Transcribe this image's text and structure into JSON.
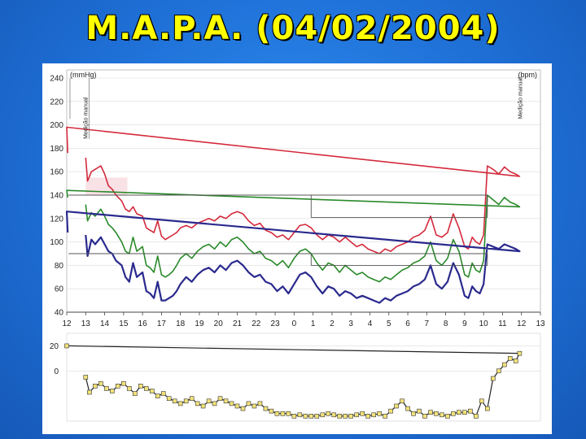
{
  "title": "M.A.P.A. (04/02/2004)",
  "chart_data": [
    {
      "type": "line",
      "title": "",
      "ylabel_left": "(mmHg)",
      "ylabel_right": "(bpm)",
      "ylim": [
        40,
        240
      ],
      "yticks": [
        40,
        60,
        80,
        100,
        120,
        140,
        160,
        180,
        200,
        220,
        240
      ],
      "xtick_labels": [
        "12",
        "13",
        "14",
        "15",
        "16",
        "17",
        "18",
        "19",
        "20",
        "21",
        "22",
        "23",
        "0",
        "1",
        "2",
        "3",
        "4",
        "5",
        "6",
        "7",
        "8",
        "9",
        "10",
        "11",
        "12",
        "13"
      ],
      "annotations": [
        "Medição manual",
        "Medição manual"
      ],
      "series": [
        {
          "color": "#d42a3c",
          "x": [
            13,
            13.1,
            13.3,
            13.5,
            13.8,
            14,
            14.2,
            14.4,
            14.6,
            14.9,
            15.1,
            15.3,
            15.5,
            15.7,
            16,
            16.2,
            16.4,
            16.6,
            16.8,
            17,
            17.2,
            17.4,
            17.6,
            17.8,
            18,
            18.3,
            18.6,
            18.9,
            19.2,
            19.5,
            19.8,
            20.1,
            20.4,
            20.7,
            21,
            21.3,
            21.6,
            21.9,
            22.2,
            22.5,
            22.8,
            23.1,
            23.4,
            23.7,
            0,
            0.3,
            0.6,
            0.9,
            1.2,
            1.5,
            1.8,
            2.1,
            2.4,
            2.7,
            3,
            3.3,
            3.6,
            3.9,
            4.2,
            4.5,
            4.8,
            5.1,
            5.4,
            5.7,
            6,
            6.3,
            6.6,
            6.9,
            7.2,
            7.5,
            7.8,
            8.1,
            8.4,
            8.7,
            9,
            9.2,
            9.4,
            9.6,
            9.8,
            10,
            10.2,
            10.5,
            10.8,
            11.1,
            11.4,
            11.7,
            11.9,
            12,
            12.05
          ],
          "values": [
            172,
            152,
            160,
            162,
            165,
            158,
            148,
            145,
            140,
            135,
            128,
            126,
            130,
            124,
            122,
            112,
            110,
            108,
            118,
            105,
            102,
            104,
            106,
            108,
            112,
            114,
            112,
            116,
            118,
            120,
            118,
            122,
            120,
            124,
            126,
            124,
            118,
            114,
            116,
            110,
            108,
            104,
            106,
            102,
            108,
            114,
            115,
            112,
            106,
            102,
            106,
            104,
            100,
            104,
            100,
            96,
            98,
            94,
            92,
            90,
            94,
            92,
            96,
            98,
            100,
            104,
            106,
            110,
            122,
            106,
            104,
            108,
            124,
            112,
            96,
            94,
            104,
            100,
            98,
            106,
            165,
            162,
            158,
            164,
            160,
            158,
            156,
            198,
            176
          ]
        },
        {
          "color": "#2a8a2a",
          "x": [
            13,
            13.1,
            13.3,
            13.5,
            13.8,
            14,
            14.2,
            14.4,
            14.6,
            14.9,
            15.1,
            15.3,
            15.5,
            15.7,
            16,
            16.2,
            16.4,
            16.6,
            16.8,
            17,
            17.2,
            17.4,
            17.6,
            17.8,
            18,
            18.3,
            18.6,
            18.9,
            19.2,
            19.5,
            19.8,
            20.1,
            20.4,
            20.7,
            21,
            21.3,
            21.6,
            21.9,
            22.2,
            22.5,
            22.8,
            23.1,
            23.4,
            23.7,
            0,
            0.3,
            0.6,
            0.9,
            1.2,
            1.5,
            1.8,
            2.1,
            2.4,
            2.7,
            3,
            3.3,
            3.6,
            3.9,
            4.2,
            4.5,
            4.8,
            5.1,
            5.4,
            5.7,
            6,
            6.3,
            6.6,
            6.9,
            7.2,
            7.5,
            7.8,
            8.1,
            8.4,
            8.7,
            9,
            9.2,
            9.4,
            9.6,
            9.8,
            10,
            10.2,
            10.5,
            10.8,
            11.1,
            11.4,
            11.7,
            11.9,
            12,
            12.05
          ],
          "values": [
            132,
            118,
            125,
            122,
            128,
            122,
            115,
            112,
            108,
            100,
            92,
            90,
            104,
            92,
            96,
            80,
            78,
            74,
            88,
            72,
            70,
            72,
            75,
            80,
            86,
            90,
            86,
            92,
            96,
            98,
            94,
            100,
            96,
            102,
            104,
            100,
            94,
            90,
            92,
            86,
            84,
            80,
            84,
            78,
            86,
            92,
            94,
            90,
            82,
            76,
            82,
            80,
            74,
            80,
            76,
            72,
            74,
            70,
            68,
            66,
            70,
            68,
            72,
            76,
            78,
            82,
            84,
            88,
            100,
            84,
            80,
            86,
            102,
            92,
            72,
            70,
            82,
            76,
            74,
            84,
            140,
            136,
            132,
            138,
            134,
            132,
            130,
            144,
            138
          ]
        },
        {
          "color": "#2a2a8e",
          "x": [
            13,
            13.1,
            13.3,
            13.5,
            13.8,
            14,
            14.2,
            14.4,
            14.6,
            14.9,
            15.1,
            15.3,
            15.5,
            15.7,
            16,
            16.2,
            16.4,
            16.6,
            16.8,
            17,
            17.2,
            17.4,
            17.6,
            17.8,
            18,
            18.3,
            18.6,
            18.9,
            19.2,
            19.5,
            19.8,
            20.1,
            20.4,
            20.7,
            21,
            21.3,
            21.6,
            21.9,
            22.2,
            22.5,
            22.8,
            23.1,
            23.4,
            23.7,
            0,
            0.3,
            0.6,
            0.9,
            1.2,
            1.5,
            1.8,
            2.1,
            2.4,
            2.7,
            3,
            3.3,
            3.6,
            3.9,
            4.2,
            4.5,
            4.8,
            5.1,
            5.4,
            5.7,
            6,
            6.3,
            6.6,
            6.9,
            7.2,
            7.5,
            7.8,
            8.1,
            8.4,
            8.7,
            9,
            9.2,
            9.4,
            9.6,
            9.8,
            10,
            10.2,
            10.5,
            10.8,
            11.1,
            11.4,
            11.7,
            11.9,
            12,
            12.05
          ],
          "values": [
            106,
            88,
            102,
            98,
            104,
            98,
            92,
            90,
            84,
            80,
            70,
            66,
            82,
            70,
            74,
            58,
            56,
            52,
            66,
            50,
            50,
            52,
            54,
            58,
            64,
            70,
            66,
            72,
            76,
            78,
            74,
            80,
            76,
            82,
            84,
            80,
            74,
            70,
            72,
            66,
            64,
            58,
            62,
            56,
            64,
            72,
            74,
            70,
            62,
            56,
            62,
            60,
            54,
            58,
            56,
            52,
            54,
            52,
            50,
            48,
            52,
            50,
            54,
            56,
            58,
            62,
            64,
            68,
            80,
            64,
            60,
            66,
            82,
            72,
            54,
            52,
            62,
            58,
            56,
            64,
            98,
            96,
            94,
            98,
            96,
            94,
            92,
            126,
            108
          ]
        },
        {
          "color": "#555555",
          "x": [
            13,
            0.9,
            0.9,
            10.2,
            10.2,
            12.1
          ],
          "values": [
            140,
            140,
            121,
            121,
            140,
            140
          ]
        },
        {
          "color": "#555555",
          "x": [
            13,
            0.9,
            0.9,
            10.2,
            10.2,
            12.1
          ],
          "values": [
            90,
            90,
            80,
            80,
            90,
            90
          ]
        }
      ]
    },
    {
      "type": "line",
      "title": "",
      "yticks": [
        0,
        20
      ],
      "ylim": [
        -40,
        30
      ],
      "series": [
        {
          "color": "#222222",
          "marker_color": "#f2e27a",
          "x": [
            13,
            13.2,
            13.5,
            13.8,
            14.1,
            14.4,
            14.7,
            15,
            15.3,
            15.6,
            15.9,
            16.2,
            16.5,
            16.8,
            17.1,
            17.4,
            17.7,
            18,
            18.3,
            18.6,
            18.9,
            19.2,
            19.5,
            19.8,
            20.1,
            20.4,
            20.7,
            21,
            21.3,
            21.6,
            21.9,
            22.2,
            22.5,
            22.8,
            23.1,
            23.4,
            23.7,
            0,
            0.3,
            0.6,
            0.9,
            1.2,
            1.5,
            1.8,
            2.1,
            2.4,
            2.7,
            3,
            3.3,
            3.6,
            3.9,
            4.2,
            4.5,
            4.8,
            5.1,
            5.4,
            5.7,
            6,
            6.3,
            6.6,
            6.9,
            7.2,
            7.5,
            7.8,
            8.1,
            8.4,
            8.7,
            9,
            9.3,
            9.6,
            9.9,
            10.2,
            10.5,
            10.8,
            11.1,
            11.4,
            11.7,
            11.9,
            12
          ],
          "values": [
            -5,
            -17,
            -12,
            -10,
            -14,
            -16,
            -12,
            -10,
            -14,
            -18,
            -12,
            -14,
            -16,
            -20,
            -18,
            -22,
            -24,
            -26,
            -24,
            -22,
            -26,
            -28,
            -24,
            -26,
            -22,
            -24,
            -26,
            -28,
            -30,
            -26,
            -28,
            -26,
            -30,
            -32,
            -34,
            -34,
            -34,
            -36,
            -35,
            -36,
            -36,
            -36,
            -35,
            -34,
            -35,
            -36,
            -36,
            -36,
            -35,
            -34,
            -36,
            -35,
            -34,
            -36,
            -32,
            -28,
            -24,
            -30,
            -34,
            -32,
            -36,
            -33,
            -34,
            -35,
            -36,
            -34,
            -33,
            -33,
            -32,
            -36,
            -24,
            -30,
            -6,
            0,
            5,
            10,
            8,
            14,
            20
          ]
        }
      ]
    }
  ]
}
